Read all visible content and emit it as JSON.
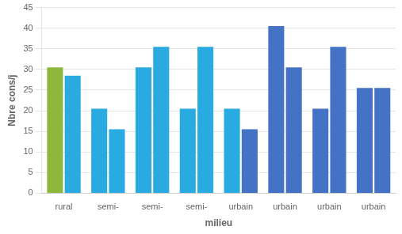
{
  "chart_data": {
    "type": "bar",
    "categories": [
      "rural",
      "semi-",
      "semi-",
      "semi-",
      "urbain",
      "urbain",
      "urbain",
      "urbain"
    ],
    "series": [
      {
        "values": [
          30.5,
          20.5,
          30.5,
          20.5,
          20.5,
          40.5,
          20.5,
          25.5
        ],
        "colors": [
          "#8DB83D",
          "#29ABE2",
          "#29ABE2",
          "#29ABE2",
          "#29ABE2",
          "#4472C4",
          "#4472C4",
          "#4472C4"
        ]
      },
      {
        "values": [
          28.5,
          15.5,
          35.5,
          35.5,
          15.5,
          30.5,
          35.5,
          25.5
        ],
        "colors": [
          "#29ABE2",
          "#29ABE2",
          "#29ABE2",
          "#29ABE2",
          "#4472C4",
          "#4472C4",
          "#4472C4",
          "#4472C4"
        ]
      }
    ],
    "y_label": "Nbre cons/j",
    "x_label": "milieu",
    "ylim": [
      0,
      45
    ],
    "yticks": [
      0,
      5,
      10,
      15,
      20,
      25,
      30,
      35,
      40,
      45
    ],
    "grid": true
  }
}
